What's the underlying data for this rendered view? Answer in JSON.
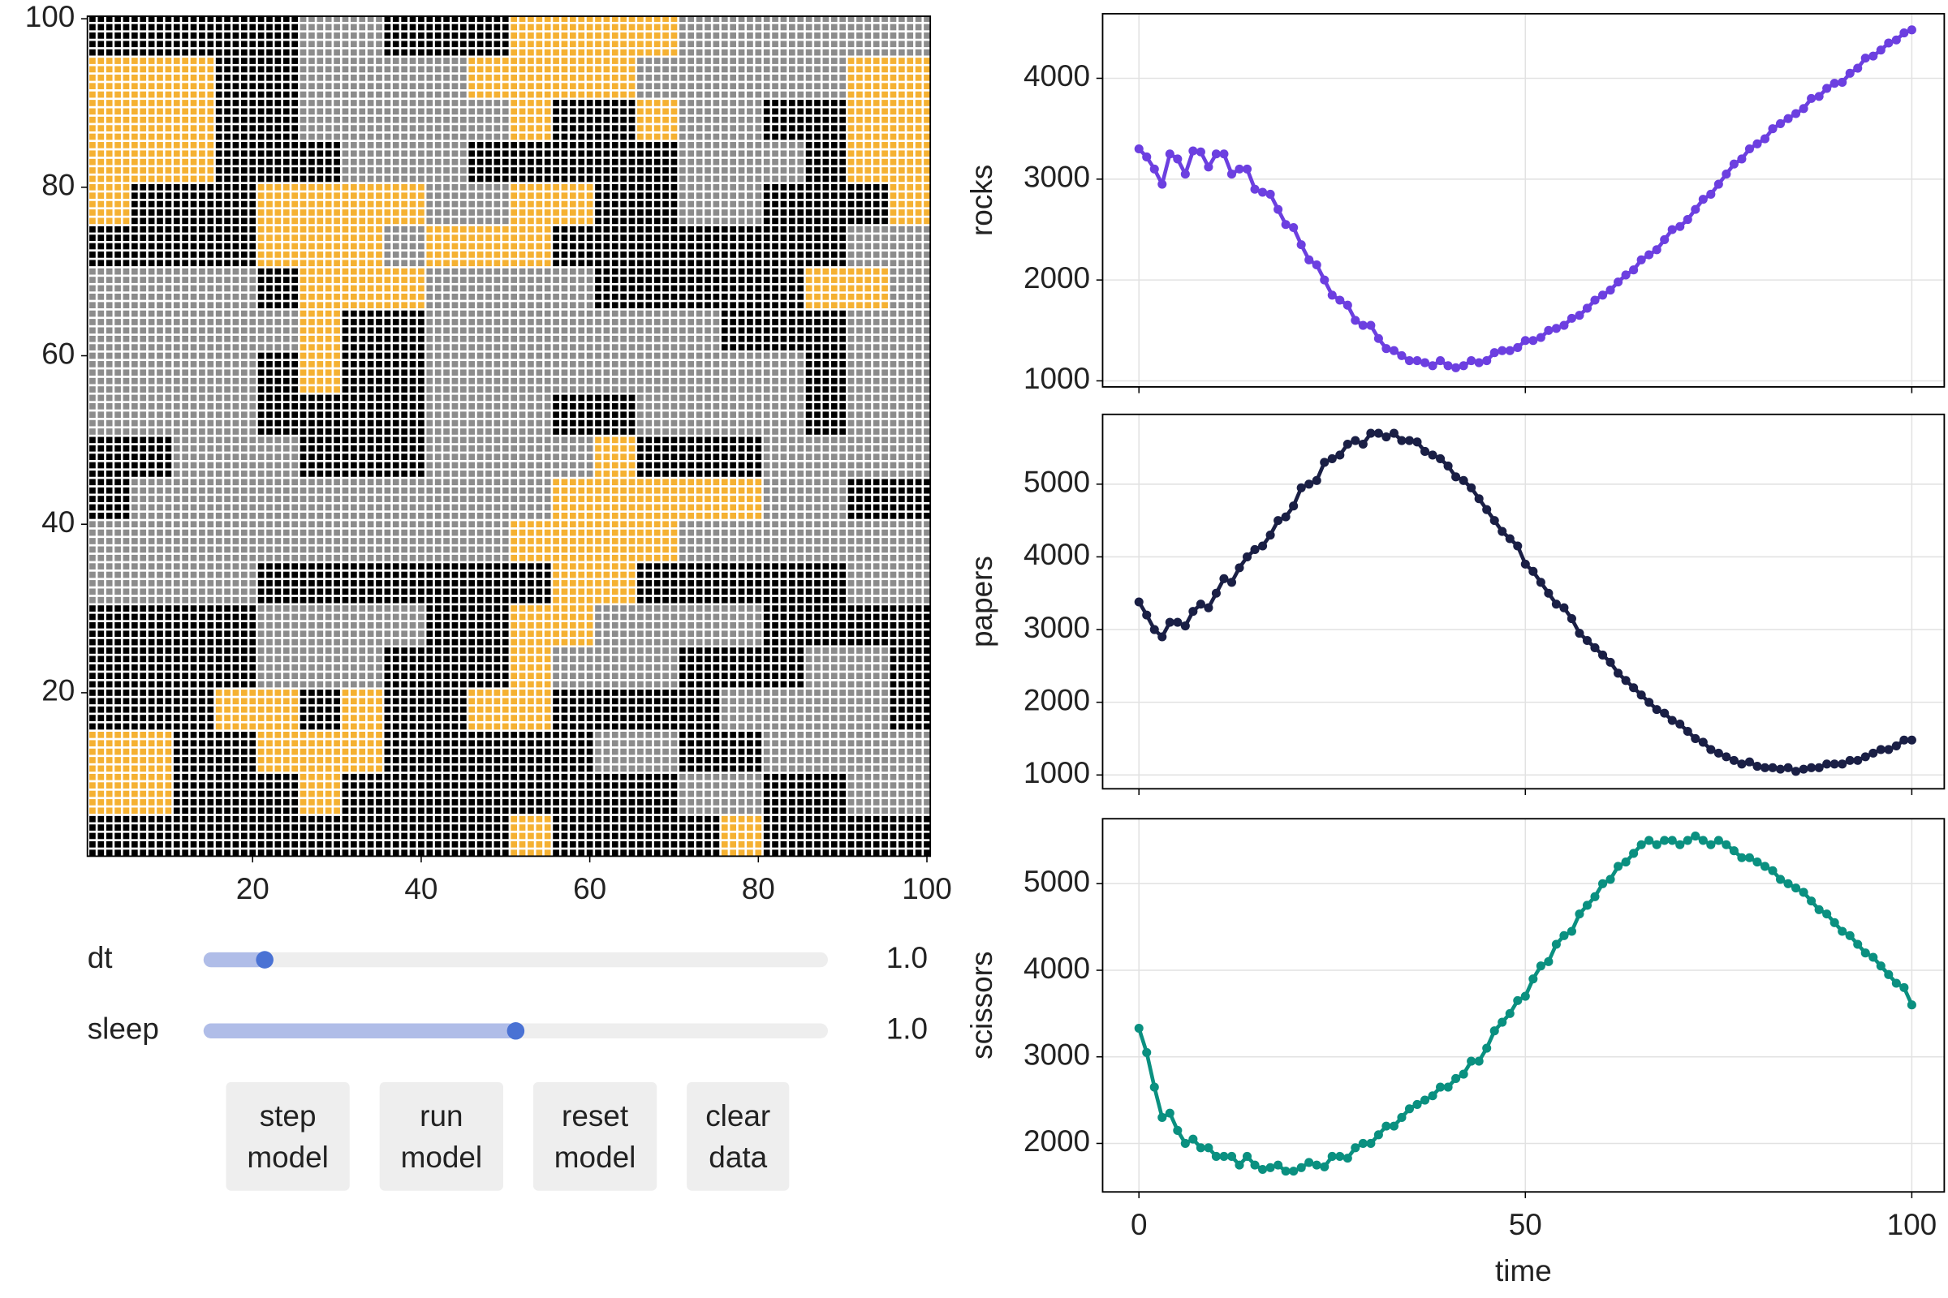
{
  "chart_data": [
    {
      "type": "agent-grid",
      "rows": [
        "bbbbbggbbboooogggggg",
        "ooobbggggoooogggggoo",
        "ooobbgggggobboggbboo",
        "ooobbbgggbbbbbgggboo",
        "obbbooooggoobbggbbbo",
        "bbbbooogooobbbbbbbgg",
        "ggggboooggggbbbbboog",
        "gggggobbgggggggbbbgg",
        "ggggbobbgggggggggbgg",
        "ggggbbbbgggbbggggbgg",
        "bbgggbbbggggobbbgggg",
        "bggggggggggoooooggbb",
        "ggggggggggoooogggggg",
        "ggggbbbbbbboobbbbbgg",
        "bbbbggggbbooggggbbbb",
        "bbbbgggbbbogggbbbggb",
        "bbboobobboobbbbggggb",
        "oobbooobbbbbggbbgggg",
        "oobbbobbbbbbbbggbbgg",
        "bbbbbbbbbbobbbbobbbb"
      ],
      "palette": {
        "b": "#000000",
        "g": "#8c8c8c",
        "o": "#f5b132",
        "w": "#ffffff"
      },
      "xlim": [
        0.4,
        100.4
      ],
      "ylim": [
        0.6,
        100.3
      ],
      "xticks": [
        20,
        40,
        60,
        80,
        100
      ],
      "yticks": [
        20,
        40,
        60,
        80,
        100
      ]
    },
    {
      "type": "line",
      "ylabel": "rocks",
      "color": "#6c3fe0",
      "xtick_labels": false,
      "x": [
        0,
        1,
        2,
        3,
        4,
        5,
        6,
        7,
        8,
        9,
        10,
        11,
        12,
        13,
        14,
        15,
        16,
        17,
        18,
        19,
        20,
        21,
        22,
        23,
        24,
        25,
        26,
        27,
        28,
        29,
        30,
        31,
        32,
        33,
        34,
        35,
        36,
        37,
        38,
        39,
        40,
        41,
        42,
        43,
        44,
        45,
        46,
        47,
        48,
        49,
        50,
        51,
        52,
        53,
        54,
        55,
        56,
        57,
        58,
        59,
        60,
        61,
        62,
        63,
        64,
        65,
        66,
        67,
        68,
        69,
        70,
        71,
        72,
        73,
        74,
        75,
        76,
        77,
        78,
        79,
        80,
        81,
        82,
        83,
        84,
        85,
        86,
        87,
        88,
        89,
        90,
        91,
        92,
        93,
        94,
        95,
        96,
        97,
        98,
        99,
        100
      ],
      "values": [
        3300,
        3220,
        3100,
        2950,
        3250,
        3200,
        3050,
        3280,
        3270,
        3120,
        3250,
        3250,
        3050,
        3100,
        3100,
        2900,
        2870,
        2850,
        2700,
        2550,
        2520,
        2350,
        2200,
        2150,
        2000,
        1850,
        1800,
        1750,
        1600,
        1550,
        1550,
        1420,
        1320,
        1300,
        1250,
        1200,
        1200,
        1180,
        1150,
        1200,
        1150,
        1130,
        1150,
        1200,
        1180,
        1200,
        1280,
        1300,
        1300,
        1330,
        1400,
        1400,
        1430,
        1500,
        1520,
        1550,
        1620,
        1650,
        1720,
        1800,
        1850,
        1900,
        1980,
        2050,
        2100,
        2200,
        2250,
        2300,
        2400,
        2500,
        2530,
        2600,
        2700,
        2800,
        2850,
        2950,
        3050,
        3150,
        3200,
        3300,
        3350,
        3400,
        3500,
        3550,
        3600,
        3650,
        3700,
        3800,
        3820,
        3900,
        3950,
        3960,
        4050,
        4100,
        4200,
        4220,
        4280,
        4350,
        4380,
        4450,
        4480
      ],
      "xlim": [
        -4.7,
        104.2
      ],
      "xticks": [
        0,
        50,
        100
      ],
      "ylim": [
        940,
        4640
      ],
      "yticks": [
        1000,
        2000,
        3000,
        4000
      ],
      "grid": true
    },
    {
      "type": "line",
      "ylabel": "papers",
      "color": "#1a1f45",
      "xtick_labels": false,
      "x": [
        0,
        1,
        2,
        3,
        4,
        5,
        6,
        7,
        8,
        9,
        10,
        11,
        12,
        13,
        14,
        15,
        16,
        17,
        18,
        19,
        20,
        21,
        22,
        23,
        24,
        25,
        26,
        27,
        28,
        29,
        30,
        31,
        32,
        33,
        34,
        35,
        36,
        37,
        38,
        39,
        40,
        41,
        42,
        43,
        44,
        45,
        46,
        47,
        48,
        49,
        50,
        51,
        52,
        53,
        54,
        55,
        56,
        57,
        58,
        59,
        60,
        61,
        62,
        63,
        64,
        65,
        66,
        67,
        68,
        69,
        70,
        71,
        72,
        73,
        74,
        75,
        76,
        77,
        78,
        79,
        80,
        81,
        82,
        83,
        84,
        85,
        86,
        87,
        88,
        89,
        90,
        91,
        92,
        93,
        94,
        95,
        96,
        97,
        98,
        99,
        100
      ],
      "values": [
        3380,
        3200,
        3000,
        2900,
        3100,
        3100,
        3050,
        3250,
        3350,
        3300,
        3500,
        3700,
        3650,
        3850,
        4000,
        4100,
        4150,
        4300,
        4500,
        4550,
        4700,
        4950,
        5000,
        5050,
        5300,
        5350,
        5400,
        5550,
        5600,
        5550,
        5700,
        5700,
        5650,
        5700,
        5600,
        5600,
        5580,
        5450,
        5400,
        5350,
        5250,
        5100,
        5050,
        4950,
        4800,
        4650,
        4500,
        4350,
        4250,
        4150,
        3900,
        3800,
        3650,
        3500,
        3350,
        3300,
        3150,
        2950,
        2850,
        2750,
        2650,
        2550,
        2400,
        2300,
        2200,
        2100,
        2000,
        1900,
        1850,
        1750,
        1700,
        1600,
        1500,
        1450,
        1350,
        1300,
        1250,
        1200,
        1150,
        1180,
        1120,
        1100,
        1100,
        1080,
        1100,
        1050,
        1080,
        1100,
        1100,
        1150,
        1150,
        1150,
        1200,
        1200,
        1250,
        1300,
        1350,
        1350,
        1400,
        1480,
        1480
      ],
      "xlim": [
        -4.7,
        104.2
      ],
      "xticks": [
        0,
        50,
        100
      ],
      "ylim": [
        810,
        5960
      ],
      "yticks": [
        1000,
        2000,
        3000,
        4000,
        5000
      ],
      "grid": true
    },
    {
      "type": "line",
      "ylabel": "scissors",
      "xlabel": "time",
      "color": "#0a9080",
      "xtick_labels": true,
      "x": [
        0,
        1,
        2,
        3,
        4,
        5,
        6,
        7,
        8,
        9,
        10,
        11,
        12,
        13,
        14,
        15,
        16,
        17,
        18,
        19,
        20,
        21,
        22,
        23,
        24,
        25,
        26,
        27,
        28,
        29,
        30,
        31,
        32,
        33,
        34,
        35,
        36,
        37,
        38,
        39,
        40,
        41,
        42,
        43,
        44,
        45,
        46,
        47,
        48,
        49,
        50,
        51,
        52,
        53,
        54,
        55,
        56,
        57,
        58,
        59,
        60,
        61,
        62,
        63,
        64,
        65,
        66,
        67,
        68,
        69,
        70,
        71,
        72,
        73,
        74,
        75,
        76,
        77,
        78,
        79,
        80,
        81,
        82,
        83,
        84,
        85,
        86,
        87,
        88,
        89,
        90,
        91,
        92,
        93,
        94,
        95,
        96,
        97,
        98,
        99,
        100
      ],
      "values": [
        3330,
        3050,
        2650,
        2300,
        2350,
        2150,
        2000,
        2050,
        1950,
        1950,
        1850,
        1850,
        1850,
        1750,
        1850,
        1750,
        1700,
        1720,
        1750,
        1680,
        1680,
        1720,
        1780,
        1750,
        1730,
        1850,
        1850,
        1830,
        1950,
        2000,
        2000,
        2100,
        2200,
        2200,
        2300,
        2400,
        2450,
        2500,
        2550,
        2650,
        2650,
        2750,
        2800,
        2950,
        2950,
        3100,
        3300,
        3400,
        3500,
        3650,
        3700,
        3900,
        4050,
        4100,
        4300,
        4400,
        4450,
        4650,
        4750,
        4850,
        5000,
        5050,
        5200,
        5250,
        5350,
        5450,
        5500,
        5450,
        5500,
        5500,
        5450,
        5500,
        5550,
        5500,
        5450,
        5500,
        5450,
        5380,
        5300,
        5300,
        5250,
        5200,
        5150,
        5050,
        5000,
        4950,
        4900,
        4800,
        4700,
        4650,
        4550,
        4450,
        4400,
        4300,
        4200,
        4150,
        4050,
        3950,
        3850,
        3800,
        3600
      ],
      "xlim": [
        -4.7,
        104.2
      ],
      "xticks": [
        0,
        50,
        100
      ],
      "ylim": [
        1440,
        5750
      ],
      "yticks": [
        2000,
        3000,
        4000,
        5000
      ],
      "grid": true
    }
  ],
  "controls": {
    "sliders": [
      {
        "label": "dt",
        "value_label": "1.0",
        "position": 0.098
      },
      {
        "label": "sleep",
        "value_label": "1.0",
        "position": 0.5
      }
    ],
    "buttons": [
      [
        "step",
        "model"
      ],
      [
        "run",
        "model"
      ],
      [
        "reset",
        "model"
      ],
      [
        "clear",
        "data"
      ]
    ]
  }
}
